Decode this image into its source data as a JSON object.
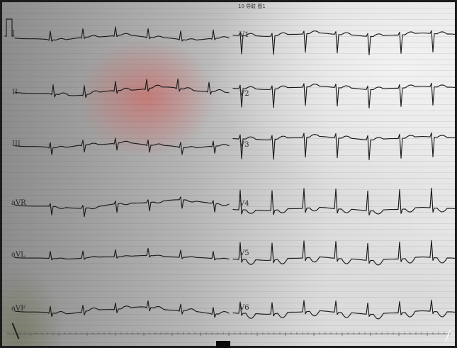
{
  "header": {
    "text": "10 导联 图1"
  },
  "leads": {
    "I": "I",
    "II": "II",
    "III": "III",
    "aVR": "aVR",
    "aVL": "aVL",
    "aVF": "aVF",
    "V1": "V1",
    "V2": "V2",
    "V3": "V3",
    "V4": "V4",
    "V5": "V5",
    "V6": "V6"
  },
  "colors": {
    "trace": "#1b1b1b",
    "paper_dark": "#8c8c8c",
    "paper_light": "#e6e6e6",
    "highlight_red": "#d75550"
  }
}
